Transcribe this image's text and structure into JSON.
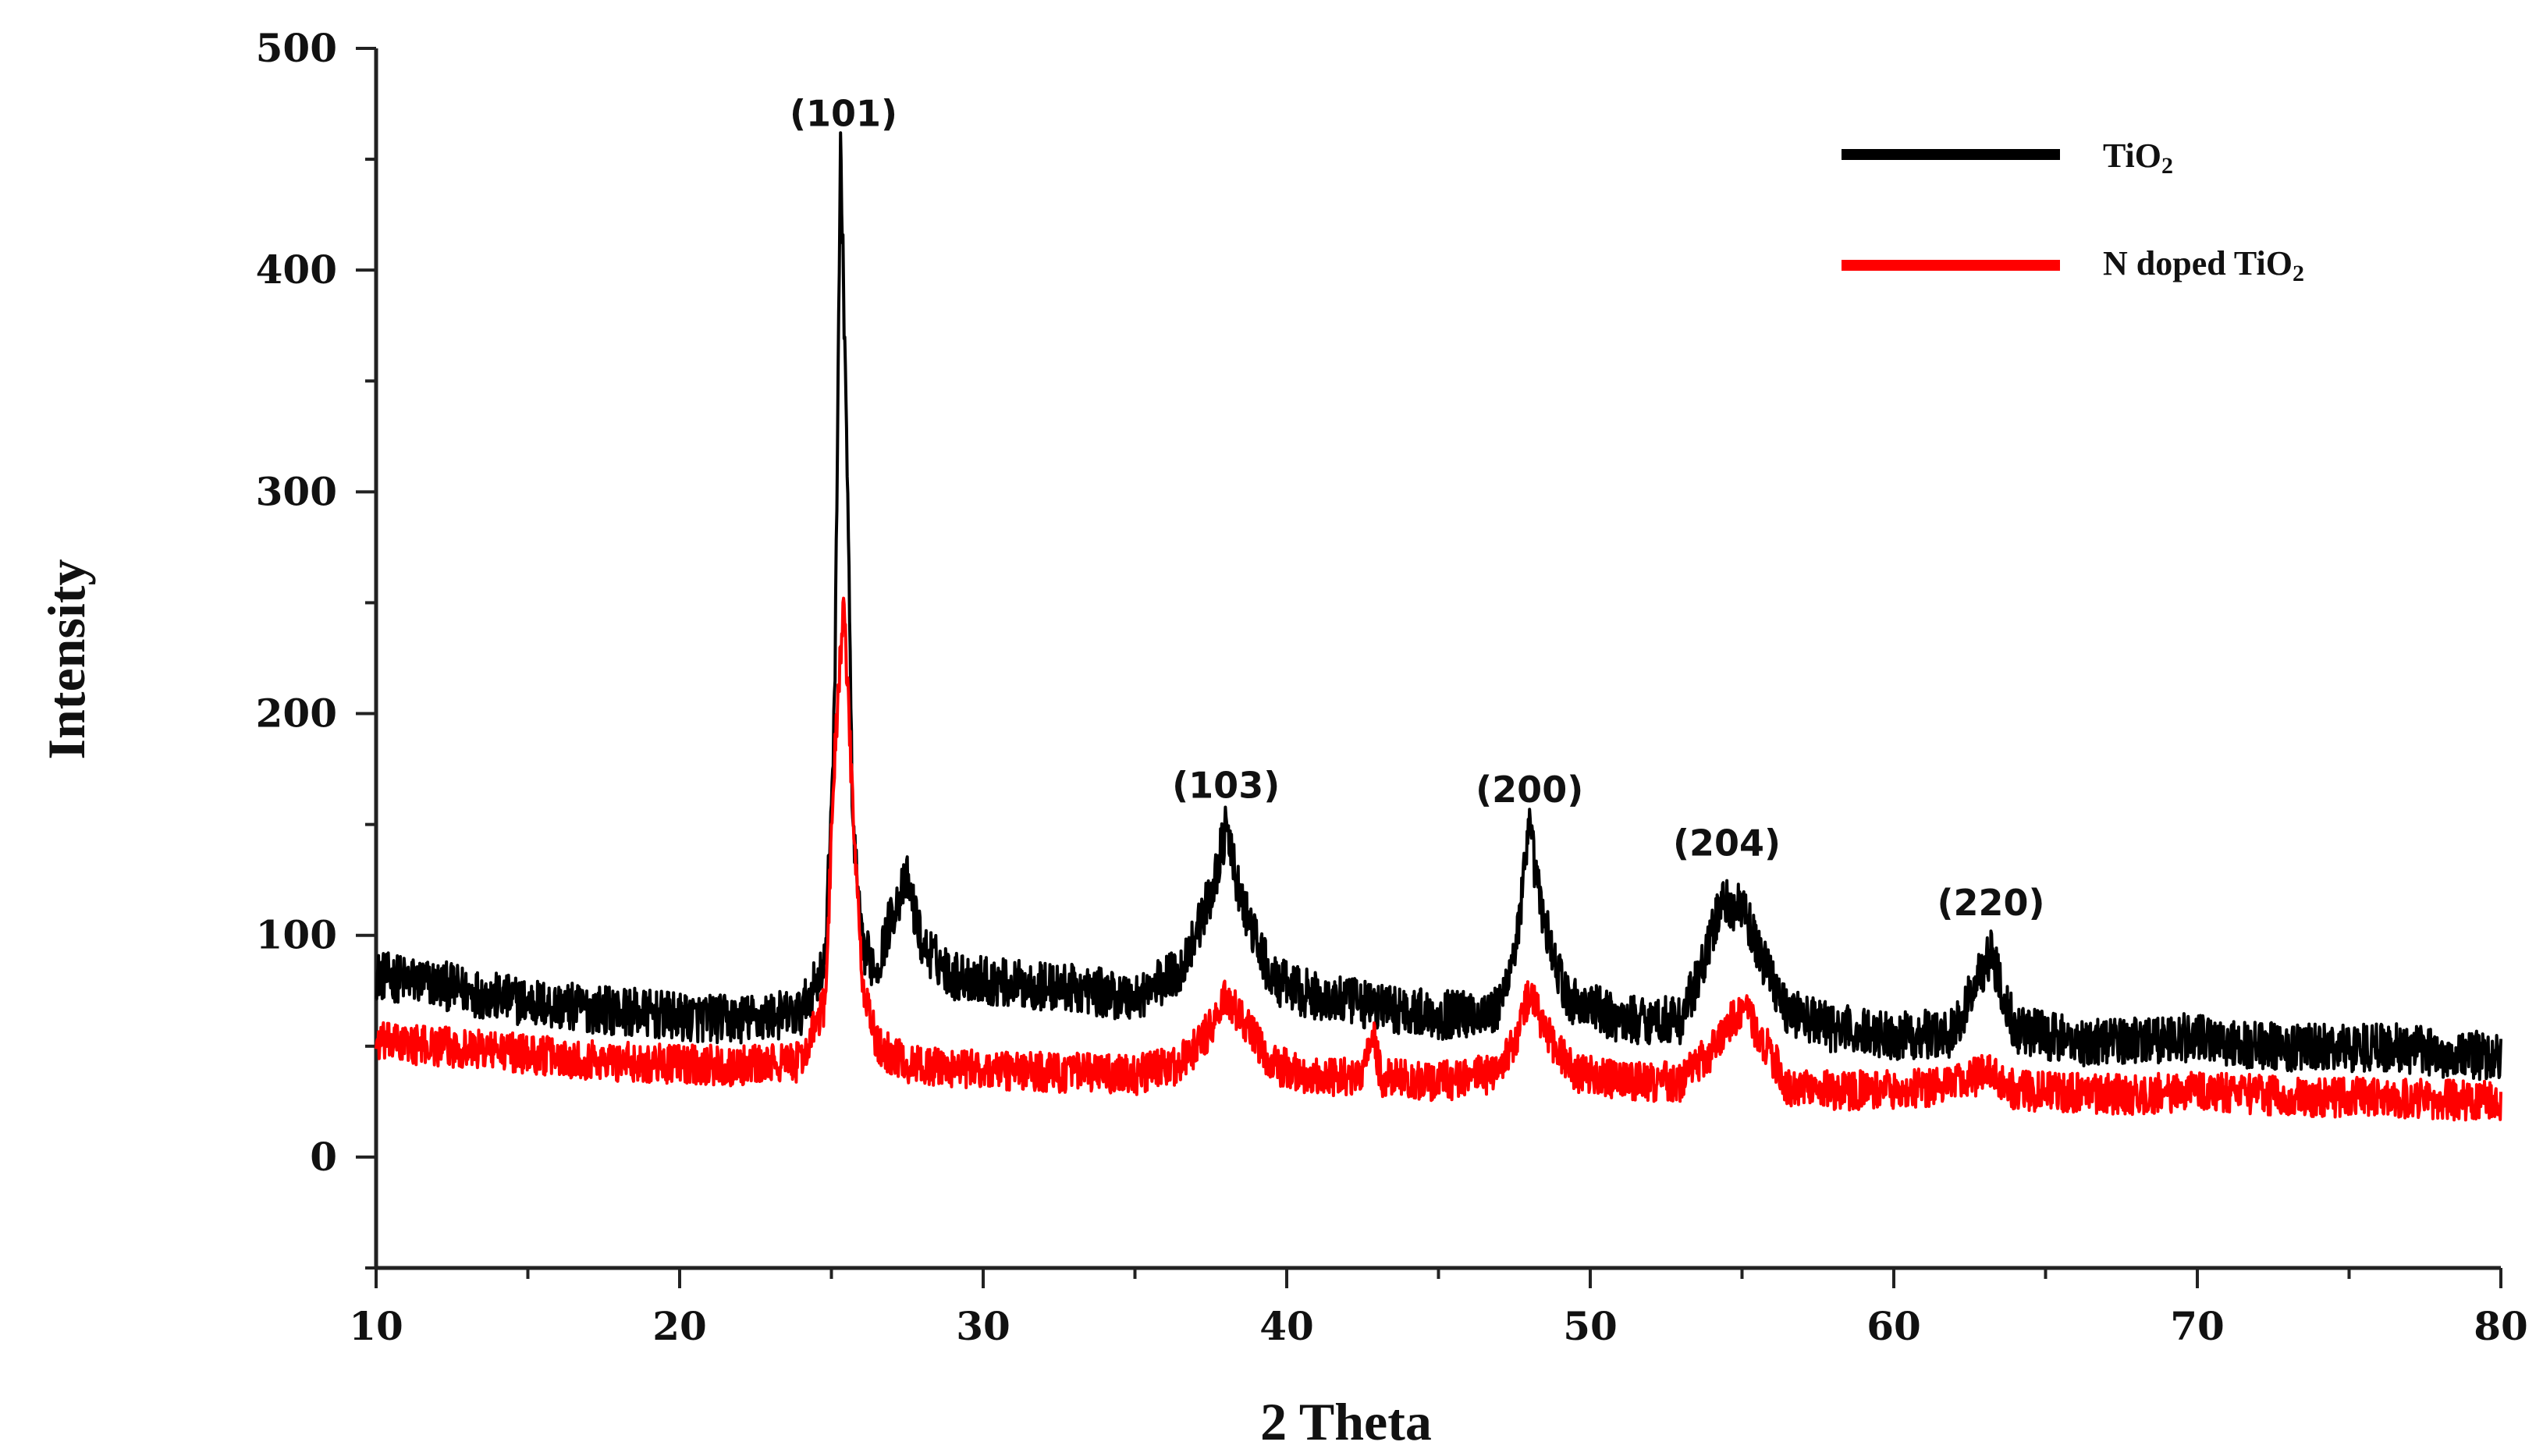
{
  "chart_data": {
    "type": "line",
    "xlabel": "2 Theta",
    "ylabel": "Intensity",
    "xlim": [
      10,
      80
    ],
    "ylim": [
      -50,
      500
    ],
    "x_ticks": [
      10,
      20,
      30,
      40,
      50,
      60,
      70,
      80
    ],
    "y_ticks": [
      0,
      100,
      200,
      300,
      400,
      500
    ],
    "grid": false,
    "legend_position": "top-right",
    "series": [
      {
        "name": "TiO2",
        "name_base": "TiO",
        "name_sub": "2",
        "color": "#000000",
        "x": [
          10,
          12,
          14,
          16,
          18,
          20,
          22,
          24,
          24.8,
          25.1,
          25.3,
          25.5,
          25.7,
          26.0,
          26.5,
          27.0,
          27.5,
          28.0,
          29,
          31,
          33,
          35,
          36.5,
          37.5,
          38.0,
          38.5,
          39.5,
          41,
          43,
          45,
          47,
          47.6,
          48.0,
          48.4,
          49.2,
          51,
          53,
          53.8,
          54.3,
          55.0,
          55.6,
          56.5,
          58,
          60,
          62,
          62.8,
          63.2,
          64,
          66,
          68,
          70,
          72,
          74,
          76,
          78,
          80
        ],
        "y": [
          82,
          78,
          72,
          68,
          66,
          63,
          62,
          65,
          88,
          200,
          455,
          330,
          150,
          95,
          85,
          110,
          125,
          95,
          82,
          78,
          76,
          72,
          84,
          118,
          148,
          115,
          80,
          72,
          68,
          64,
          66,
          100,
          148,
          110,
          72,
          62,
          62,
          90,
          115,
          112,
          92,
          66,
          58,
          55,
          56,
          82,
          92,
          58,
          52,
          53,
          54,
          50,
          49,
          50,
          47,
          45
        ]
      },
      {
        "name": "N doped TiO2",
        "name_base": "N doped TiO",
        "name_sub": "2",
        "color": "#ff0000",
        "x": [
          10,
          12,
          14,
          16,
          18,
          20,
          22,
          24,
          24.8,
          25.1,
          25.4,
          25.7,
          26.0,
          26.5,
          27.5,
          29,
          31,
          33,
          35,
          36.5,
          37.5,
          38.0,
          38.6,
          39.5,
          41,
          42.5,
          42.8,
          43.1,
          45,
          47,
          47.6,
          48.0,
          48.6,
          49.5,
          51,
          53,
          54,
          55.0,
          56,
          56.5,
          58,
          60,
          62,
          63,
          64,
          66,
          68,
          70,
          72,
          74,
          76,
          78,
          80
        ],
        "y": [
          52,
          50,
          48,
          45,
          43,
          42,
          41,
          43,
          70,
          180,
          250,
          160,
          80,
          50,
          42,
          40,
          39,
          38,
          37,
          42,
          58,
          72,
          60,
          42,
          36,
          36,
          58,
          36,
          34,
          38,
          55,
          75,
          55,
          38,
          34,
          34,
          48,
          68,
          45,
          32,
          30,
          30,
          32,
          38,
          30,
          29,
          28,
          30,
          28,
          27,
          27,
          26,
          25
        ]
      }
    ],
    "annotations": [
      {
        "text": "(101)",
        "x": 25.4,
        "y": 465
      },
      {
        "text": "(103)",
        "x": 38.0,
        "y": 162
      },
      {
        "text": "(200)",
        "x": 48.0,
        "y": 160
      },
      {
        "text": "(204)",
        "x": 54.5,
        "y": 136
      },
      {
        "text": "(220)",
        "x": 63.2,
        "y": 109
      }
    ]
  }
}
